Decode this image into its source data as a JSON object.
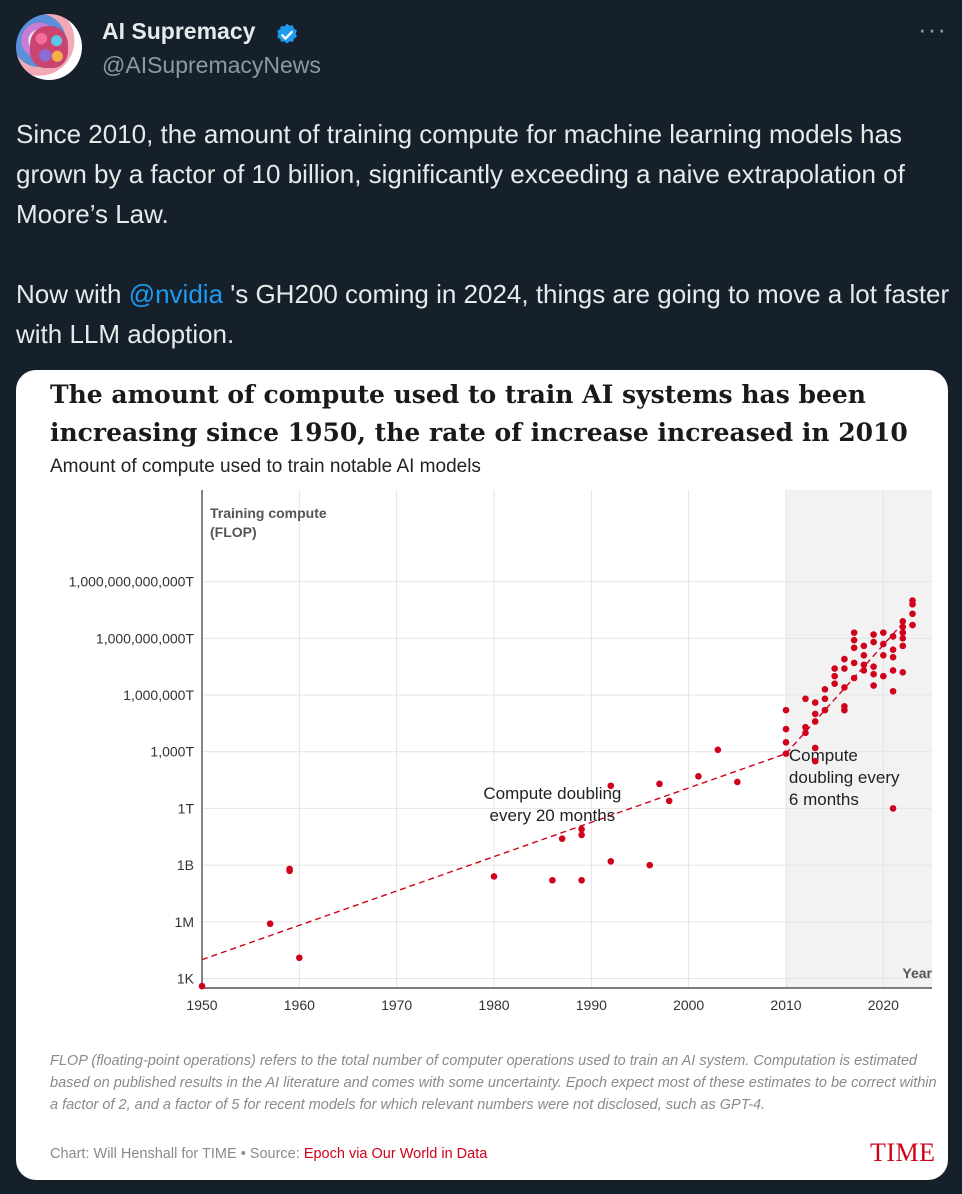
{
  "tweet": {
    "author_name": "AI Supremacy",
    "author_handle": "@AISupremacyNews",
    "more_label": "···",
    "paragraph1": "Since 2010, the amount of training compute for machine learning models has grown by a factor of 10 billion, significantly exceeding a naive extrapolation of Moore’s Law.",
    "p2_before": "Now with ",
    "p2_mention": "@nvidia",
    "p2_after": " 's GH200 coming in 2024, things are going to move a lot faster with LLM adoption."
  },
  "card": {
    "title": "The amount of compute used to train AI systems has been increasing since 1950, the rate of increase increased in 2010",
    "subtitle": "Amount of compute used to train notable AI models",
    "footnote": "FLOP (floating-point operations) refers to the total number of computer operations used to train an AI system. Computation is estimated based on published results in the AI literature and comes with some uncertainty. Epoch expect most of these estimates to be correct within a factor of 2, and a factor of 5 for recent models for which relevant numbers were not disclosed, such as GPT-4.",
    "credit_prefix": "Chart: Will Henshall for TIME • Source: ",
    "credit_source": "Epoch via Our World in Data",
    "logo": "TIME"
  },
  "colors": {
    "background": "#15202b",
    "accent": "#1d9bf0",
    "points": "#d0021b",
    "shade": "#f2f2f2"
  },
  "chart_data": {
    "type": "scatter",
    "title": "The amount of compute used to train AI systems has been increasing since 1950, the rate of increase increased in 2010",
    "subtitle": "Amount of compute used to train notable AI models",
    "ylabel_line1": "Training compute",
    "ylabel_line2": "(FLOP)",
    "xlabel": "Year",
    "y_scale": "log10",
    "xlim": [
      1950,
      2025
    ],
    "ylim_log10": [
      2.5,
      28
    ],
    "x_ticks": [
      1950,
      1960,
      1970,
      1980,
      1990,
      2000,
      2010,
      2020
    ],
    "y_ticks": [
      {
        "label": "1K",
        "log10": 3
      },
      {
        "label": "1M",
        "log10": 6
      },
      {
        "label": "1B",
        "log10": 9
      },
      {
        "label": "1T",
        "log10": 12
      },
      {
        "label": "1,000T",
        "log10": 15
      },
      {
        "label": "1,000,000T",
        "log10": 18
      },
      {
        "label": "1,000,000,000T",
        "log10": 21
      },
      {
        "label": "1,000,000,000,000T",
        "log10": 24
      }
    ],
    "shaded_region": [
      2010,
      2025
    ],
    "trend_lines": [
      {
        "name": "Compute doubling every 20 months",
        "x": [
          1950,
          2010
        ],
        "log10": [
          4.0,
          14.9
        ]
      },
      {
        "name": "Compute doubling every 6 months",
        "x": [
          2010,
          2022
        ],
        "log10": [
          14.9,
          21.8
        ]
      }
    ],
    "annotations": [
      {
        "lines": [
          "Compute doubling",
          "every  20 months"
        ],
        "x": 1986,
        "log10": 12.5,
        "align": "middle"
      },
      {
        "lines": [
          "Compute",
          "doubling every",
          "6 months"
        ],
        "x": 2010.3,
        "log10": 14.5,
        "align": "start"
      }
    ],
    "points": [
      {
        "x": 1950,
        "log10": 2.6
      },
      {
        "x": 1957,
        "log10": 5.9
      },
      {
        "x": 1959,
        "log10": 8.7
      },
      {
        "x": 1959,
        "log10": 8.8
      },
      {
        "x": 1960,
        "log10": 4.1
      },
      {
        "x": 1980,
        "log10": 8.4
      },
      {
        "x": 1986,
        "log10": 8.2
      },
      {
        "x": 1987,
        "log10": 10.4
      },
      {
        "x": 1989,
        "log10": 8.2
      },
      {
        "x": 1989,
        "log10": 10.6
      },
      {
        "x": 1989,
        "log10": 10.9
      },
      {
        "x": 1992,
        "log10": 9.2
      },
      {
        "x": 1992,
        "log10": 13.2
      },
      {
        "x": 1996,
        "log10": 9.0
      },
      {
        "x": 1997,
        "log10": 13.3
      },
      {
        "x": 1998,
        "log10": 12.4
      },
      {
        "x": 2001,
        "log10": 13.7
      },
      {
        "x": 2003,
        "log10": 15.1
      },
      {
        "x": 2005,
        "log10": 13.4
      },
      {
        "x": 2010,
        "log10": 14.9
      },
      {
        "x": 2010,
        "log10": 15.5
      },
      {
        "x": 2010,
        "log10": 16.2
      },
      {
        "x": 2010,
        "log10": 17.2
      },
      {
        "x": 2012,
        "log10": 16.0
      },
      {
        "x": 2012,
        "log10": 16.3
      },
      {
        "x": 2012,
        "log10": 17.8
      },
      {
        "x": 2013,
        "log10": 14.5
      },
      {
        "x": 2013,
        "log10": 15.2
      },
      {
        "x": 2013,
        "log10": 16.6
      },
      {
        "x": 2013,
        "log10": 17.0
      },
      {
        "x": 2013,
        "log10": 17.6
      },
      {
        "x": 2014,
        "log10": 17.2
      },
      {
        "x": 2014,
        "log10": 17.8
      },
      {
        "x": 2014,
        "log10": 18.3
      },
      {
        "x": 2015,
        "log10": 18.6
      },
      {
        "x": 2015,
        "log10": 19.0
      },
      {
        "x": 2015,
        "log10": 19.4
      },
      {
        "x": 2016,
        "log10": 17.2
      },
      {
        "x": 2016,
        "log10": 17.4
      },
      {
        "x": 2016,
        "log10": 18.4
      },
      {
        "x": 2016,
        "log10": 19.4
      },
      {
        "x": 2016,
        "log10": 19.9
      },
      {
        "x": 2017,
        "log10": 18.9
      },
      {
        "x": 2017,
        "log10": 19.7
      },
      {
        "x": 2017,
        "log10": 20.5
      },
      {
        "x": 2017,
        "log10": 20.9
      },
      {
        "x": 2017,
        "log10": 21.3
      },
      {
        "x": 2018,
        "log10": 19.3
      },
      {
        "x": 2018,
        "log10": 19.6
      },
      {
        "x": 2018,
        "log10": 20.1
      },
      {
        "x": 2018,
        "log10": 20.6
      },
      {
        "x": 2019,
        "log10": 18.5
      },
      {
        "x": 2019,
        "log10": 19.1
      },
      {
        "x": 2019,
        "log10": 19.5
      },
      {
        "x": 2019,
        "log10": 20.8
      },
      {
        "x": 2019,
        "log10": 21.2
      },
      {
        "x": 2020,
        "log10": 19.0
      },
      {
        "x": 2020,
        "log10": 20.1
      },
      {
        "x": 2020,
        "log10": 20.7
      },
      {
        "x": 2020,
        "log10": 21.3
      },
      {
        "x": 2021,
        "log10": 12.0
      },
      {
        "x": 2021,
        "log10": 18.2
      },
      {
        "x": 2021,
        "log10": 19.3
      },
      {
        "x": 2021,
        "log10": 20.0
      },
      {
        "x": 2021,
        "log10": 20.4
      },
      {
        "x": 2021,
        "log10": 21.1
      },
      {
        "x": 2022,
        "log10": 19.2
      },
      {
        "x": 2022,
        "log10": 20.6
      },
      {
        "x": 2022,
        "log10": 21.0
      },
      {
        "x": 2022,
        "log10": 21.3
      },
      {
        "x": 2022,
        "log10": 21.6
      },
      {
        "x": 2022,
        "log10": 21.9
      },
      {
        "x": 2023,
        "log10": 21.7
      },
      {
        "x": 2023,
        "log10": 22.3
      },
      {
        "x": 2023,
        "log10": 22.8
      },
      {
        "x": 2023,
        "log10": 23.0
      }
    ]
  }
}
